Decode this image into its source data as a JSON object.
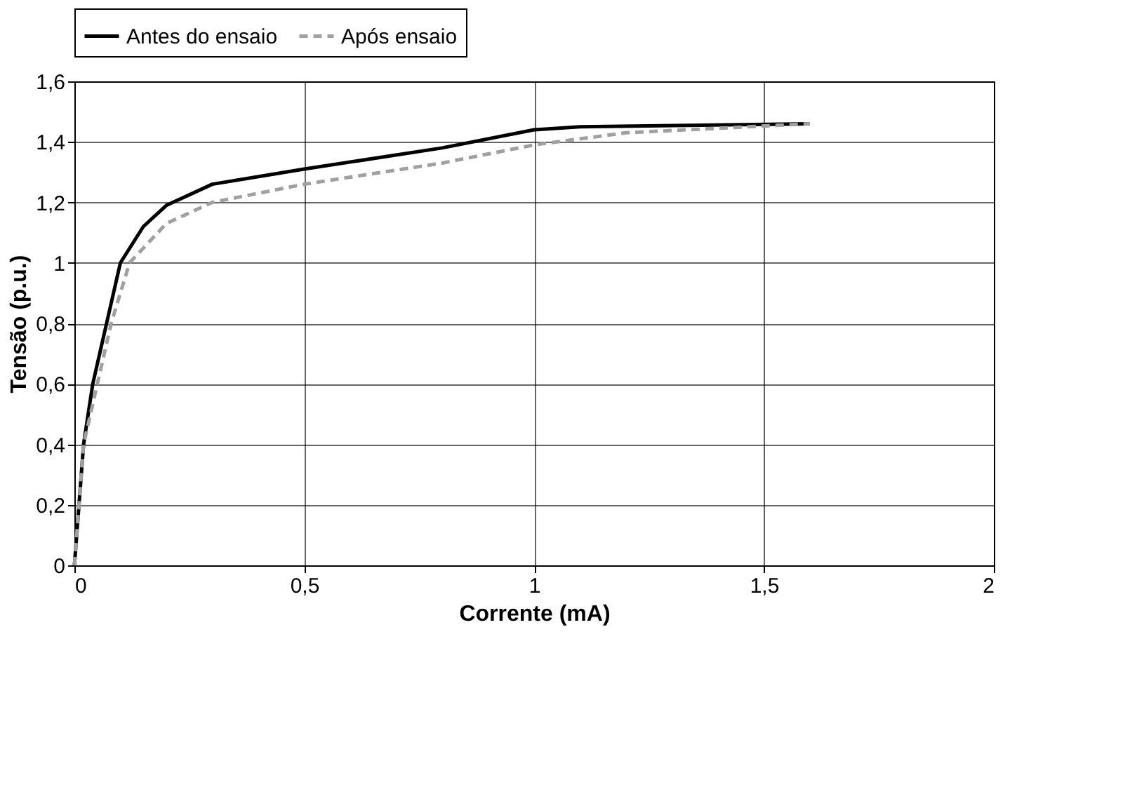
{
  "chart_data": {
    "type": "line",
    "xlabel": "Corrente (mA)",
    "ylabel": "Tensão (p.u.)",
    "xlim": [
      0,
      2
    ],
    "ylim": [
      0,
      1.6
    ],
    "xticks": [
      0,
      {
        "value": 0.5,
        "label": "0,5"
      },
      1,
      {
        "value": 1.5,
        "label": "1,5"
      },
      2
    ],
    "yticks": [
      0,
      {
        "value": 0.2,
        "label": "0,2"
      },
      {
        "value": 0.4,
        "label": "0,4"
      },
      {
        "value": 0.6,
        "label": "0,6"
      },
      {
        "value": 0.8,
        "label": "0,8"
      },
      1,
      {
        "value": 1.2,
        "label": "1,2"
      },
      {
        "value": 1.4,
        "label": "1,4"
      },
      {
        "value": 1.6,
        "label": "1,6"
      }
    ],
    "grid": true,
    "legend": "top",
    "marker": "none",
    "series": [
      {
        "name": "Antes do ensaio",
        "color": "#000000",
        "line_style": "solid",
        "x": [
          0,
          0.01,
          0.02,
          0.04,
          0.07,
          0.1,
          0.15,
          0.2,
          0.3,
          0.5,
          0.8,
          1.0,
          1.1,
          1.6
        ],
        "values": [
          0,
          0.2,
          0.4,
          0.6,
          0.8,
          1.0,
          1.12,
          1.19,
          1.26,
          1.31,
          1.38,
          1.44,
          1.45,
          1.46
        ]
      },
      {
        "name": "Após ensaio",
        "color": "#a0a0a0",
        "line_style": "dashed",
        "x": [
          0,
          0.01,
          0.02,
          0.05,
          0.08,
          0.12,
          0.2,
          0.3,
          0.5,
          0.8,
          1.0,
          1.2,
          1.6
        ],
        "values": [
          0,
          0.2,
          0.4,
          0.6,
          0.8,
          1.0,
          1.13,
          1.2,
          1.26,
          1.33,
          1.39,
          1.43,
          1.46
        ]
      }
    ]
  }
}
